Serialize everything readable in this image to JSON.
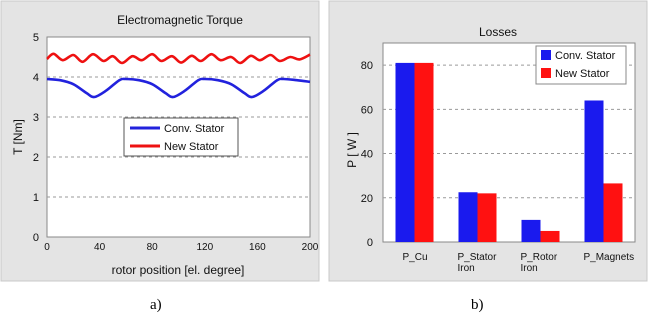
{
  "chart_data": [
    {
      "type": "line",
      "title": "Electromagnetic Torque",
      "xlabel": "rotor position [el. degree]",
      "ylabel": "T  [Nm]",
      "xlim": [
        0,
        200
      ],
      "ylim": [
        0,
        5
      ],
      "xticks": [
        "0",
        "40",
        "80",
        "120",
        "160",
        "200"
      ],
      "yticks": [
        "0",
        "1",
        "2",
        "3",
        "4",
        "5"
      ],
      "grid": "horizontal-dashed",
      "legend_position": "center-right",
      "series": [
        {
          "name": "Conv. Stator",
          "color": "#2222dd",
          "x": [
            0,
            10,
            20,
            30,
            36,
            45,
            55,
            60,
            70,
            80,
            90,
            96,
            105,
            115,
            120,
            130,
            140,
            150,
            156,
            165,
            175,
            180,
            190,
            200
          ],
          "y": [
            3.95,
            3.92,
            3.82,
            3.6,
            3.5,
            3.66,
            3.92,
            3.95,
            3.92,
            3.82,
            3.6,
            3.5,
            3.66,
            3.92,
            3.95,
            3.92,
            3.82,
            3.6,
            3.5,
            3.66,
            3.92,
            3.95,
            3.92,
            3.88
          ]
        },
        {
          "name": "New Stator",
          "color": "#ee1111",
          "x": [
            0,
            5,
            12,
            20,
            27,
            35,
            43,
            50,
            57,
            65,
            72,
            80,
            87,
            95,
            102,
            110,
            117,
            125,
            132,
            140,
            147,
            155,
            162,
            170,
            177,
            185,
            192,
            200
          ],
          "y": [
            4.45,
            4.58,
            4.42,
            4.55,
            4.38,
            4.57,
            4.4,
            4.52,
            4.35,
            4.52,
            4.42,
            4.57,
            4.4,
            4.52,
            4.36,
            4.53,
            4.4,
            4.57,
            4.42,
            4.5,
            4.35,
            4.53,
            4.42,
            4.55,
            4.4,
            4.5,
            4.44,
            4.56
          ]
        }
      ]
    },
    {
      "type": "bar",
      "title": "Losses",
      "xlabel": "",
      "ylabel": "P  [ W ]",
      "ylim": [
        0,
        90
      ],
      "yticks": [
        "0",
        "20",
        "40",
        "60",
        "80"
      ],
      "grid": "horizontal-dashed",
      "legend_position": "top-right",
      "categories": [
        [
          "P_Cu"
        ],
        [
          "P_Stator",
          "Iron"
        ],
        [
          "P_Rotor",
          "Iron"
        ],
        [
          "P_Magnets"
        ]
      ],
      "series": [
        {
          "name": "Conv. Stator",
          "color": "#1a1aee",
          "values": [
            81,
            22.5,
            10,
            64
          ]
        },
        {
          "name": "New Stator",
          "color": "#ff1111",
          "values": [
            81,
            22,
            5,
            26.5
          ]
        }
      ]
    }
  ],
  "captions": {
    "left": "a)",
    "right": "b)"
  }
}
